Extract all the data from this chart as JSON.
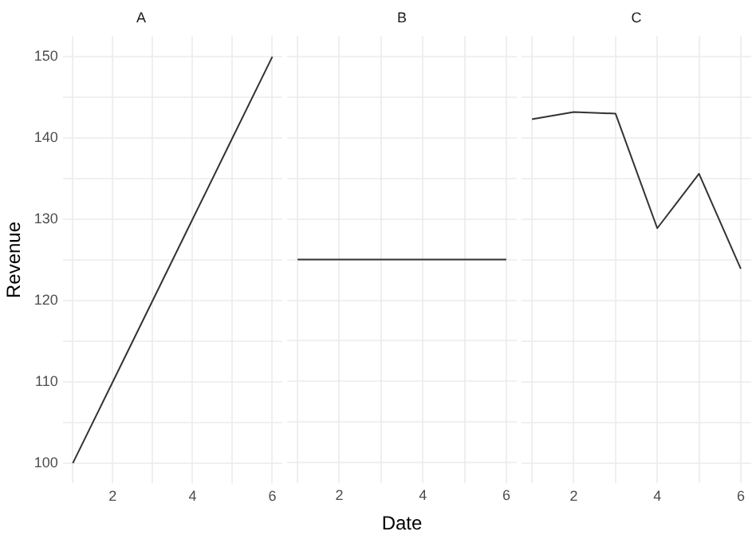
{
  "chart_data": [
    {
      "type": "line",
      "title": "A",
      "ylabel": "Revenue",
      "x": [
        1,
        2,
        3,
        4,
        5,
        6
      ],
      "values": [
        100,
        110,
        120,
        130,
        140,
        150
      ],
      "color": "#333333",
      "xlim": [
        0.75,
        6.25
      ],
      "ylim": [
        97.5,
        152.5
      ],
      "xticks": [
        {
          "value": 1,
          "label": null
        },
        2,
        {
          "value": 3,
          "label": null
        },
        4,
        {
          "value": 5,
          "label": null
        },
        6
      ],
      "yticks": [
        100,
        {
          "value": 105,
          "label": null
        },
        110,
        {
          "value": 115,
          "label": null
        },
        120,
        {
          "value": 125,
          "label": null
        },
        130,
        {
          "value": 135,
          "label": null
        },
        140,
        {
          "value": 145,
          "label": null
        },
        150
      ],
      "grid": true
    },
    {
      "type": "line",
      "title": "B",
      "xlabel": "Date",
      "x": [
        1,
        2,
        3,
        4,
        5,
        6
      ],
      "values": [
        125,
        125,
        125,
        125,
        125,
        125
      ],
      "color": "#333333",
      "xlim": [
        0.75,
        6.25
      ],
      "ylim": [
        97.5,
        152.5
      ],
      "xticks": [
        {
          "value": 1,
          "label": null
        },
        2,
        {
          "value": 3,
          "label": null
        },
        4,
        {
          "value": 5,
          "label": null
        },
        6
      ],
      "yticks": [
        100,
        {
          "value": 105,
          "label": null
        },
        110,
        {
          "value": 115,
          "label": null
        },
        120,
        {
          "value": 125,
          "label": null
        },
        130,
        {
          "value": 135,
          "label": null
        },
        140,
        {
          "value": 145,
          "label": null
        },
        150
      ],
      "grid": true,
      "tick_labels": "x"
    },
    {
      "type": "line",
      "title": "C",
      "x": [
        1,
        2,
        3,
        4,
        5,
        6
      ],
      "values": [
        142.3,
        143.2,
        143,
        128.9,
        135.6,
        123.9
      ],
      "color": "#333333",
      "xlim": [
        0.75,
        6.25
      ],
      "ylim": [
        97.5,
        152.5
      ],
      "xticks": [
        {
          "value": 1,
          "label": null
        },
        2,
        {
          "value": 3,
          "label": null
        },
        4,
        {
          "value": 5,
          "label": null
        },
        6
      ],
      "yticks": [
        100,
        {
          "value": 105,
          "label": null
        },
        110,
        {
          "value": 115,
          "label": null
        },
        120,
        {
          "value": 125,
          "label": null
        },
        130,
        {
          "value": 135,
          "label": null
        },
        140,
        {
          "value": 145,
          "label": null
        },
        150
      ],
      "grid": true,
      "tick_labels": "x"
    }
  ]
}
